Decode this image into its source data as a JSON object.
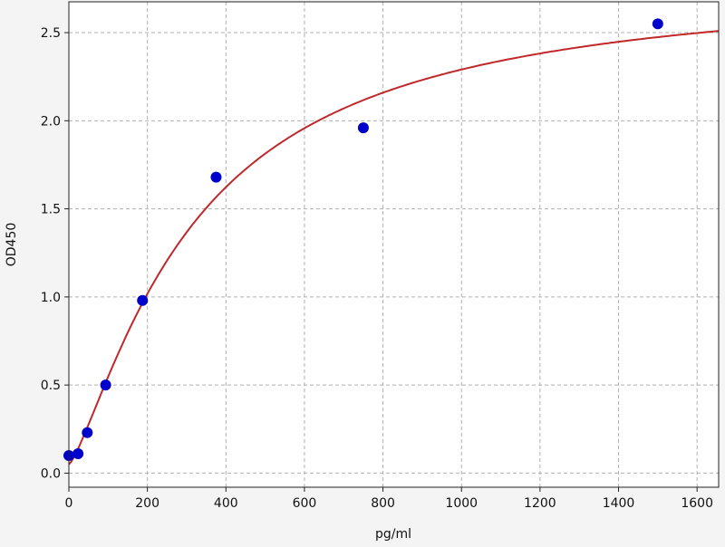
{
  "chart_data": {
    "type": "scatter",
    "title": "",
    "xlabel": "pg/ml",
    "ylabel": "OD450",
    "xlim": [
      0,
      1655
    ],
    "ylim": [
      -0.08,
      2.675
    ],
    "xticks": [
      0,
      200,
      400,
      600,
      800,
      1000,
      1200,
      1400,
      1600
    ],
    "yticks": [
      0.0,
      0.5,
      1.0,
      1.5,
      2.0,
      2.5
    ],
    "xtick_labels": [
      "0",
      "200",
      "400",
      "600",
      "800",
      "1000",
      "1200",
      "1400",
      "1600"
    ],
    "ytick_labels": [
      "0.0",
      "0.5",
      "1.0",
      "1.5",
      "2.0",
      "2.5"
    ],
    "grid": true,
    "points": {
      "x": [
        0,
        23.44,
        46.88,
        93.75,
        187.5,
        375,
        750,
        1500
      ],
      "y": [
        0.1,
        0.11,
        0.23,
        0.5,
        0.98,
        1.68,
        1.96,
        2.55
      ],
      "color": "#0000cc"
    },
    "fit_curve": {
      "model": "4PL",
      "a": 0.05,
      "b": 1.3,
      "c": 320,
      "d": 2.8,
      "color": "#c0282a"
    }
  }
}
